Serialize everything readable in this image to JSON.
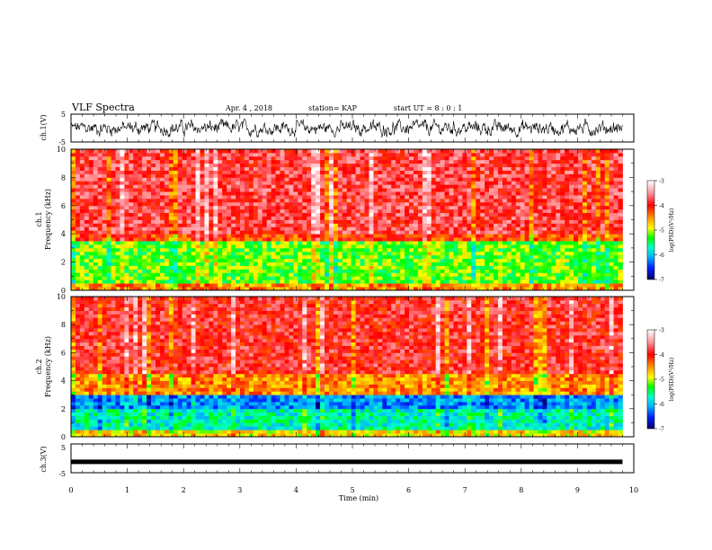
{
  "header": {
    "title": "VLF Spectra",
    "date": "Apr. 4 , 2018",
    "station": "station= KAP",
    "start_ut": "start UT =  8 : 0 : 1"
  },
  "xaxis": {
    "label": "Time (min)",
    "ticks": [
      "0",
      "1",
      "2",
      "3",
      "4",
      "5",
      "6",
      "7",
      "8",
      "9",
      "10"
    ]
  },
  "panels": {
    "ch1_wave": {
      "ylabel": "ch.1(V)",
      "ticks": [
        "5",
        "-5"
      ]
    },
    "ch1_spec": {
      "ylabel_line1": "ch.1",
      "ylabel_line2": "Frequency (kHz)",
      "ticks": [
        "10",
        "8",
        "6",
        "4",
        "2",
        "0"
      ]
    },
    "ch2_spec": {
      "ylabel_line1": "ch.2",
      "ylabel_line2": "Frequency (kHz)",
      "ticks": [
        "10",
        "8",
        "6",
        "4",
        "2",
        "0"
      ]
    },
    "ch3_wave": {
      "ylabel": "ch.3(V)",
      "ticks": [
        "5",
        "-5"
      ]
    }
  },
  "colorbar": {
    "label": "log(PSD)(V²/Hz)",
    "ticks": [
      "-3",
      "-4",
      "-5",
      "-6",
      "-7"
    ]
  },
  "chart_data": [
    {
      "type": "line",
      "title": "ch.1(V)",
      "xlabel": "Time (min)",
      "ylabel": "ch.1(V)",
      "xlim": [
        0,
        10
      ],
      "ylim": [
        -5,
        5
      ],
      "data_end_min": 9.8,
      "description_values": {
        "mean": 0,
        "amplitude_range": [
          -2.5,
          2.5
        ]
      }
    },
    {
      "type": "heatmap",
      "title": "ch.1",
      "xlabel": "Time (min)",
      "ylabel": "Frequency (kHz)",
      "xlim": [
        0,
        10
      ],
      "ylim": [
        0,
        10
      ],
      "data_end_min": 9.8,
      "colorscale_range": [
        -7,
        -3
      ],
      "bands_kHz_logPSD": [
        {
          "f_range": [
            0,
            0.6
          ],
          "logPSD": -4.5
        },
        {
          "f_range": [
            0.6,
            3.5
          ],
          "logPSD": -5.2
        },
        {
          "f_range": [
            3.5,
            3.9
          ],
          "logPSD": -4.2
        },
        {
          "f_range": [
            3.9,
            10
          ],
          "logPSD": -3.8
        }
      ]
    },
    {
      "type": "heatmap",
      "title": "ch.2",
      "xlabel": "Time (min)",
      "ylabel": "Frequency (kHz)",
      "xlim": [
        0,
        10
      ],
      "ylim": [
        0,
        10
      ],
      "data_end_min": 9.8,
      "colorscale_range": [
        -7,
        -3
      ],
      "bands_kHz_logPSD": [
        {
          "f_range": [
            0,
            0.4
          ],
          "logPSD": -4.8
        },
        {
          "f_range": [
            0.4,
            1.9
          ],
          "logPSD": -5.7
        },
        {
          "f_range": [
            1.9,
            3.1
          ],
          "logPSD": -6.2
        },
        {
          "f_range": [
            3.1,
            4.5
          ],
          "logPSD": -4.5
        },
        {
          "f_range": [
            4.5,
            10
          ],
          "logPSD": -3.9
        }
      ]
    },
    {
      "type": "line",
      "title": "ch.3(V)",
      "xlabel": "Time (min)",
      "ylabel": "ch.3(V)",
      "xlim": [
        0,
        10
      ],
      "ylim": [
        -5,
        5
      ],
      "data_end_min": 9.8,
      "constant_value": -1.2
    }
  ]
}
